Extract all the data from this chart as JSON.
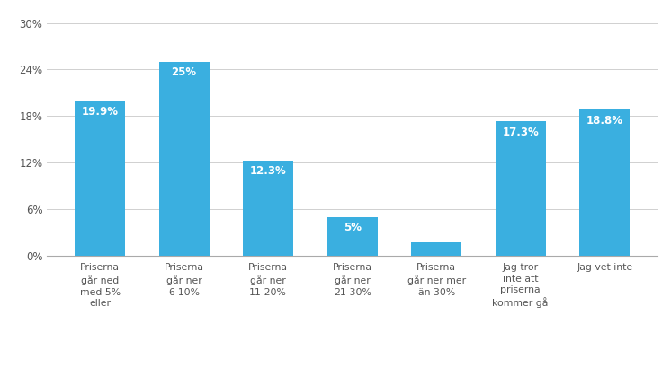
{
  "categories": [
    "Priserna\ngår ned\nmed 5%\neller",
    "Priserna\ngår ner\n6-10%",
    "Priserna\ngår ner\n11-20%",
    "Priserna\ngår ner\n21-30%",
    "Priserna\ngår ner mer\nän 30%",
    "Jag tror\ninte att\npriserna\nkommer gå",
    "Jag vet inte"
  ],
  "values": [
    19.9,
    25.0,
    12.3,
    5.0,
    1.7,
    17.3,
    18.8
  ],
  "labels": [
    "19.9%",
    "25%",
    "12.3%",
    "5%",
    "",
    "17.3%",
    "18.8%"
  ],
  "bar_color": "#3AAFE0",
  "label_color": "#FFFFFF",
  "label_fontsize": 8.5,
  "label_fontweight": "bold",
  "yticks": [
    0,
    6,
    12,
    18,
    24,
    30
  ],
  "ytick_labels": [
    "0%",
    "6%",
    "12%",
    "18%",
    "24%",
    "30%"
  ],
  "ylim": [
    0,
    31.5
  ],
  "background_color": "#FFFFFF",
  "grid_color": "#D0D0D0",
  "tick_label_color": "#555555",
  "tick_label_fontsize": 8.5,
  "xtick_label_fontsize": 7.8
}
